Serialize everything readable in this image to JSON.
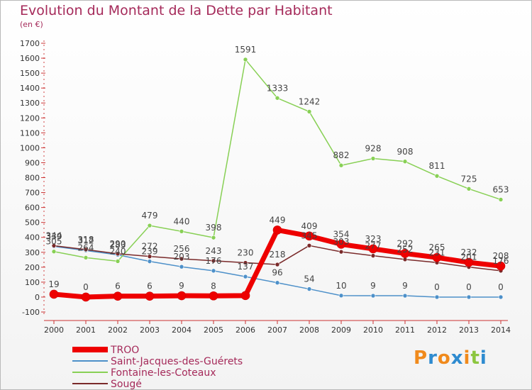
{
  "title": "Evolution du Montant de la Dette par Habitant",
  "subtitle": "(en €)",
  "logo": {
    "text": "Proxiti",
    "colors": [
      "#f08a1c",
      "#2e8bd0",
      "#f08a1c",
      "#2e8bd0",
      "#f08a1c",
      "#8cc63f",
      "#2e8bd0"
    ]
  },
  "chart_data": {
    "type": "line",
    "title": "Evolution du Montant de la Dette par Habitant",
    "ylabel": "(en €)",
    "ylim": [
      -100,
      1700
    ],
    "yticks": [
      -100,
      0,
      100,
      200,
      300,
      400,
      500,
      600,
      700,
      800,
      900,
      1000,
      1100,
      1200,
      1300,
      1400,
      1500,
      1600,
      1700
    ],
    "x": [
      "2000",
      "2001",
      "2002",
      "2003",
      "2004",
      "2005",
      "2006",
      "2007",
      "2008",
      "2009",
      "2010",
      "2011",
      "2012",
      "2013",
      "2014"
    ],
    "grid": false,
    "legend": "bottom-left",
    "series": [
      {
        "name": "TROO",
        "color": "#ee0000",
        "width": 7,
        "values": [
          19,
          0,
          6,
          6,
          9,
          8,
          10,
          449,
          409,
          354,
          323,
          292,
          265,
          232,
          208
        ],
        "labels": [
          "19",
          "0",
          "6",
          "6",
          "9",
          "8",
          "",
          "449",
          "409",
          "354",
          "323",
          "292",
          "265",
          "232",
          "208"
        ]
      },
      {
        "name": "Saint-Jacques-des-Guérets",
        "color": "#4d90c9",
        "width": 1.5,
        "values": [
          339,
          312,
          283,
          239,
          203,
          176,
          137,
          96,
          54,
          10,
          9,
          9,
          0,
          0,
          0
        ],
        "labels": [
          "339",
          "312",
          "283",
          "239",
          "203",
          "176",
          "137",
          "96",
          "54",
          "10",
          "9",
          "9",
          "0",
          "0",
          "0"
        ]
      },
      {
        "name": "Fontaine-les-Coteaux",
        "color": "#88d055",
        "width": 1.5,
        "values": [
          305,
          264,
          240,
          479,
          440,
          398,
          1591,
          1333,
          1242,
          882,
          928,
          908,
          811,
          725,
          653
        ],
        "labels": [
          "305",
          "264",
          "240",
          "479",
          "440",
          "398",
          "1591",
          "1333",
          "1242",
          "882",
          "928",
          "908",
          "811",
          "725",
          "653"
        ]
      },
      {
        "name": "Sougé",
        "color": "#7a2a2a",
        "width": 1.5,
        "values": [
          344,
          318,
          290,
          272,
          256,
          243,
          230,
          218,
          345,
          303,
          277,
          252,
          231,
          201,
          176
        ],
        "labels": [
          "344",
          "318",
          "290",
          "272",
          "256",
          "243",
          "230",
          "218",
          "345",
          "303",
          "277",
          "252",
          "231",
          "201",
          "176"
        ]
      }
    ]
  }
}
